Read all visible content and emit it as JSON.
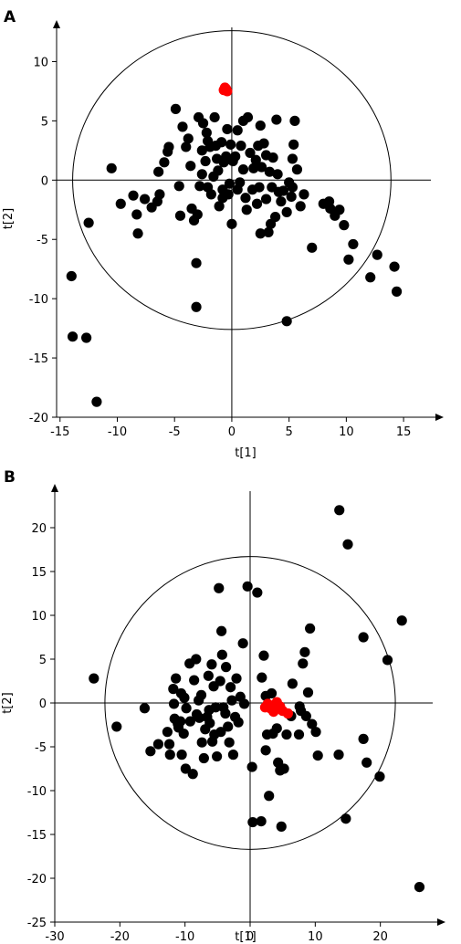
{
  "chart_data": [
    {
      "type": "scatter",
      "panel_label": "A",
      "xlabel": "t[1]",
      "ylabel": "t[2]",
      "xlim": [
        -15.3,
        18.5
      ],
      "ylim": [
        -20,
        13.5
      ],
      "x_ticks": [
        -15,
        -10,
        -5,
        0,
        5,
        10,
        15
      ],
      "y_ticks": [
        -20,
        -15,
        -10,
        -5,
        0,
        5,
        10
      ],
      "ellipse": {
        "cx": 0,
        "cy": 0,
        "rx": 13.9,
        "ry": 12.6
      },
      "colors": {
        "points": "#000000",
        "highlight": "#ff0000"
      },
      "series": [
        {
          "color": "#000000",
          "points": [
            [
              -14,
              -8.1
            ],
            [
              -13.9,
              -13.2
            ],
            [
              -12.7,
              -13.3
            ],
            [
              -11.8,
              -18.7
            ],
            [
              -12.5,
              -3.6
            ],
            [
              -10.5,
              1
            ],
            [
              -9.7,
              -2
            ],
            [
              -8.6,
              -1.3
            ],
            [
              -8.3,
              -2.9
            ],
            [
              -8.2,
              -4.5
            ],
            [
              -7.6,
              -1.6
            ],
            [
              -7,
              -2.3
            ],
            [
              -6.5,
              -1.8
            ],
            [
              -6.4,
              0.7
            ],
            [
              -6.3,
              -1.2
            ],
            [
              -5.9,
              1.5
            ],
            [
              -5.6,
              2.4
            ],
            [
              -5.5,
              2.8
            ],
            [
              -4.9,
              6
            ],
            [
              -4.6,
              -0.5
            ],
            [
              -4.5,
              -3
            ],
            [
              -4.3,
              4.5
            ],
            [
              -4,
              2.8
            ],
            [
              -3.8,
              3.5
            ],
            [
              -3.6,
              1.2
            ],
            [
              -3.5,
              -2.4
            ],
            [
              -3.3,
              -3.4
            ],
            [
              -3.1,
              -7
            ],
            [
              -3.1,
              -10.7
            ],
            [
              -3,
              -2.9
            ],
            [
              -2.9,
              5.3
            ],
            [
              -2.8,
              -0.5
            ],
            [
              -2.6,
              2.5
            ],
            [
              -2.6,
              0.5
            ],
            [
              -2.5,
              4.8
            ],
            [
              -2.3,
              1.6
            ],
            [
              -2.2,
              4
            ],
            [
              -2.1,
              3.3
            ],
            [
              -2.1,
              -0.6
            ],
            [
              -1.9,
              2.8
            ],
            [
              -1.8,
              -1.2
            ],
            [
              -1.6,
              0.3
            ],
            [
              -1.5,
              5.3
            ],
            [
              -1.4,
              2.9
            ],
            [
              -1.3,
              1.8
            ],
            [
              -1.2,
              0.8
            ],
            [
              -1.1,
              -2.2
            ],
            [
              -0.9,
              3.2
            ],
            [
              -0.8,
              -0.8
            ],
            [
              -0.8,
              -1.5
            ],
            [
              -0.7,
              1.5
            ],
            [
              -0.5,
              2
            ],
            [
              -0.4,
              4.3
            ],
            [
              -0.3,
              -1.2
            ],
            [
              -0.2,
              -0.3
            ],
            [
              -0.1,
              3
            ],
            [
              0,
              -3.7
            ],
            [
              0.1,
              1.6
            ],
            [
              0.3,
              2
            ],
            [
              0.5,
              -0.8
            ],
            [
              0.5,
              4.2
            ],
            [
              0.7,
              -0.2
            ],
            [
              0.8,
              2.9
            ],
            [
              1,
              5
            ],
            [
              1,
              0.9
            ],
            [
              1.2,
              -1.5
            ],
            [
              1.3,
              -2.5
            ],
            [
              1.4,
              5.3
            ],
            [
              1.6,
              2.3
            ],
            [
              1.8,
              -0.8
            ],
            [
              1.9,
              1
            ],
            [
              2.1,
              1.7
            ],
            [
              2.2,
              -2
            ],
            [
              2.3,
              2.9
            ],
            [
              2.4,
              -0.6
            ],
            [
              2.5,
              4.6
            ],
            [
              2.5,
              -4.5
            ],
            [
              2.6,
              1.1
            ],
            [
              2.8,
              3.1
            ],
            [
              3,
              -1.6
            ],
            [
              3,
              2.1
            ],
            [
              3.2,
              -4.4
            ],
            [
              3.3,
              0.7
            ],
            [
              3.4,
              -3.7
            ],
            [
              3.5,
              -0.6
            ],
            [
              3.6,
              1.9
            ],
            [
              3.8,
              -3.1
            ],
            [
              3.9,
              5.1
            ],
            [
              4,
              0.5
            ],
            [
              4.1,
              -1
            ],
            [
              4.3,
              -1.8
            ],
            [
              4.5,
              -0.9
            ],
            [
              4.8,
              -2.7
            ],
            [
              4.8,
              -11.9
            ],
            [
              5,
              -0.2
            ],
            [
              5.2,
              -1.4
            ],
            [
              5.3,
              -0.6
            ],
            [
              5.3,
              1.8
            ],
            [
              5.4,
              3
            ],
            [
              5.5,
              5
            ],
            [
              5.7,
              0.9
            ],
            [
              6,
              -2.2
            ],
            [
              6.3,
              -1.2
            ],
            [
              7,
              -5.7
            ],
            [
              8,
              -2
            ],
            [
              8.5,
              -1.8
            ],
            [
              8.6,
              -2.4
            ],
            [
              9,
              -3
            ],
            [
              9.4,
              -2.5
            ],
            [
              9.8,
              -3.8
            ],
            [
              10.2,
              -6.7
            ],
            [
              10.6,
              -5.4
            ],
            [
              12.1,
              -8.2
            ],
            [
              12.7,
              -6.3
            ],
            [
              14.2,
              -7.3
            ],
            [
              14.4,
              -9.4
            ]
          ]
        },
        {
          "color": "#ff0000",
          "points": [
            [
              -0.7,
              7.6
            ],
            [
              -0.4,
              7.5
            ],
            [
              -0.6,
              7.8
            ],
            [
              -0.5,
              7.7
            ]
          ]
        }
      ]
    },
    {
      "type": "scatter",
      "panel_label": "B",
      "xlabel": "t[1]",
      "ylabel": "t[2]",
      "xlim": [
        -30,
        30
      ],
      "ylim": [
        -25,
        25
      ],
      "x_ticks": [
        -30,
        -20,
        -10,
        0,
        10,
        20
      ],
      "y_ticks": [
        -25,
        -20,
        -15,
        -10,
        -5,
        0,
        5,
        10,
        15,
        20
      ],
      "ellipse": {
        "cx": 0,
        "cy": 0,
        "rx": 22.3,
        "ry": 16.7
      },
      "colors": {
        "points": "#000000",
        "highlight": "#ff0000"
      },
      "series": [
        {
          "color": "#000000",
          "points": [
            [
              -24,
              2.8
            ],
            [
              -20.5,
              -2.7
            ],
            [
              -16.2,
              -0.6
            ],
            [
              -15.3,
              -5.5
            ],
            [
              -14.1,
              -4.7
            ],
            [
              -12.7,
              -3.3
            ],
            [
              -12.4,
              -4.7
            ],
            [
              -12.3,
              -5.9
            ],
            [
              -11.8,
              1.6
            ],
            [
              -11.7,
              -0.1
            ],
            [
              -11.6,
              -1.8
            ],
            [
              -11.4,
              2.8
            ],
            [
              -11.1,
              -2.4
            ],
            [
              -11,
              -2.8
            ],
            [
              -10.7,
              -2.1
            ],
            [
              -10.6,
              1.1
            ],
            [
              -10.5,
              -5.9
            ],
            [
              -10.2,
              -3.5
            ],
            [
              -10.1,
              0.6
            ],
            [
              -9.9,
              -7.5
            ],
            [
              -9.8,
              -0.6
            ],
            [
              -9.3,
              4.5
            ],
            [
              -9.2,
              -2.1
            ],
            [
              -8.8,
              -8.1
            ],
            [
              -8.6,
              2.6
            ],
            [
              -8.3,
              5
            ],
            [
              -8.2,
              -1.3
            ],
            [
              -7.9,
              0.3
            ],
            [
              -7.8,
              -1.7
            ],
            [
              -7.5,
              0.9
            ],
            [
              -7.4,
              -4.5
            ],
            [
              -7.1,
              -6.3
            ],
            [
              -6.9,
              -3
            ],
            [
              -6.6,
              -1.6
            ],
            [
              -6.4,
              3.1
            ],
            [
              -6.3,
              -0.8
            ],
            [
              -6.2,
              -2.3
            ],
            [
              -5.9,
              4.4
            ],
            [
              -5.8,
              -4.4
            ],
            [
              -5.6,
              1.9
            ],
            [
              -5.5,
              -3.6
            ],
            [
              -5.3,
              -0.5
            ],
            [
              -5.1,
              -6.1
            ],
            [
              -4.8,
              13.1
            ],
            [
              -4.6,
              2.5
            ],
            [
              -4.5,
              -3.3
            ],
            [
              -4.4,
              8.2
            ],
            [
              -4.3,
              5.5
            ],
            [
              -4.1,
              -0.5
            ],
            [
              -3.8,
              -1.2
            ],
            [
              -3.7,
              4.1
            ],
            [
              -3.4,
              -2.7
            ],
            [
              -3.2,
              -4.5
            ],
            [
              -3,
              1.8
            ],
            [
              -2.8,
              0.3
            ],
            [
              -2.6,
              -5.9
            ],
            [
              -2.3,
              -1.6
            ],
            [
              -2.1,
              2.8
            ],
            [
              -1.8,
              -2.2
            ],
            [
              -1.5,
              0.7
            ],
            [
              -1.1,
              6.8
            ],
            [
              -0.9,
              -0.1
            ],
            [
              -0.4,
              13.3
            ],
            [
              0.3,
              -7.3
            ],
            [
              0.4,
              -13.6
            ],
            [
              1.1,
              12.6
            ],
            [
              1.7,
              -13.5
            ],
            [
              1.8,
              2.9
            ],
            [
              2.1,
              5.4
            ],
            [
              2.4,
              -5.4
            ],
            [
              2.4,
              0.8
            ],
            [
              2.6,
              -3.6
            ],
            [
              2.9,
              -10.6
            ],
            [
              3.3,
              1.1
            ],
            [
              3.5,
              -3.5
            ],
            [
              4.1,
              -2.9
            ],
            [
              4.3,
              -6.8
            ],
            [
              4.6,
              -7.7
            ],
            [
              4.8,
              -14.1
            ],
            [
              5.2,
              -7.5
            ],
            [
              5.6,
              -3.6
            ],
            [
              6.3,
              -1.5
            ],
            [
              6.5,
              2.2
            ],
            [
              7.5,
              -3.6
            ],
            [
              7.6,
              -0.4
            ],
            [
              7.8,
              -0.9
            ],
            [
              8.1,
              4.5
            ],
            [
              8.4,
              5.8
            ],
            [
              8.6,
              -1.5
            ],
            [
              8.9,
              1.2
            ],
            [
              9.2,
              8.5
            ],
            [
              9.5,
              -2.4
            ],
            [
              10.1,
              -3.3
            ],
            [
              10.4,
              -6
            ],
            [
              13.6,
              -5.9
            ],
            [
              14.7,
              -13.2
            ],
            [
              13.7,
              22
            ],
            [
              15,
              18.1
            ],
            [
              17.4,
              7.5
            ],
            [
              17.4,
              -4.1
            ],
            [
              17.9,
              -6.8
            ],
            [
              19.9,
              -8.4
            ],
            [
              21.1,
              4.9
            ],
            [
              23.3,
              9.4
            ],
            [
              26,
              -21
            ]
          ]
        },
        {
          "color": "#ff0000",
          "points": [
            [
              2.3,
              -0.5
            ],
            [
              2.7,
              -0.1
            ],
            [
              3.1,
              -0.6
            ],
            [
              3.4,
              -0.3
            ],
            [
              3.6,
              -1
            ],
            [
              3.9,
              -0.2
            ],
            [
              4.1,
              0.1
            ],
            [
              4.3,
              -0.6
            ],
            [
              4.6,
              -0.4
            ],
            [
              5,
              -0.9
            ],
            [
              5.8,
              -1.2
            ]
          ]
        }
      ]
    }
  ]
}
